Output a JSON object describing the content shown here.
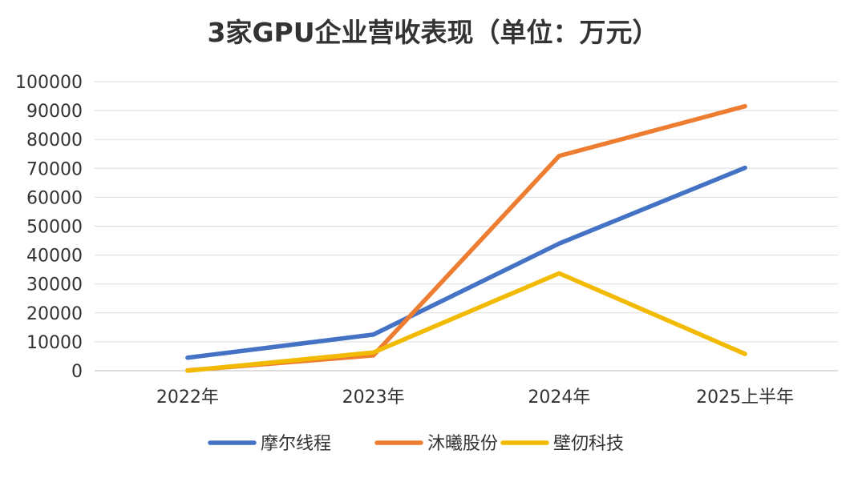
{
  "chart_data": {
    "type": "line",
    "title": "3家GPU企业营收表现（单位：万元）",
    "xlabel": "",
    "ylabel": "",
    "categories": [
      "2022年",
      "2023年",
      "2024年",
      "2025上半年"
    ],
    "ylim": [
      0,
      100000
    ],
    "yticks": [
      "0",
      "10000",
      "20000",
      "30000",
      "40000",
      "50000",
      "60000",
      "70000",
      "80000",
      "90000",
      "100000"
    ],
    "grid": true,
    "legend_position": "bottom",
    "series": [
      {
        "name": "摩尔线程",
        "color": "#4472C4",
        "values": [
          4500,
          12500,
          44000,
          70200
        ]
      },
      {
        "name": "沐曦股份",
        "color": "#ED7D31",
        "values": [
          100,
          5300,
          74300,
          91500
        ]
      },
      {
        "name": "壁仞科技",
        "color": "#F2BA02",
        "values": [
          0,
          6300,
          33700,
          5800
        ]
      }
    ]
  }
}
